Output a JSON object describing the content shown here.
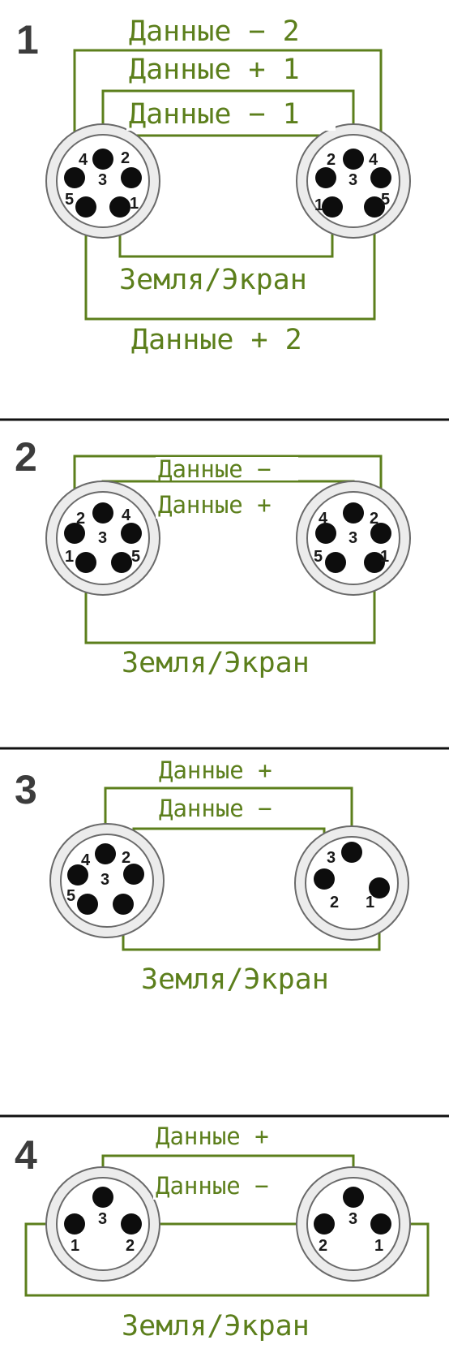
{
  "sections": [
    {
      "number": "1",
      "labels": {
        "data_minus_2": "Данные − 2",
        "data_plus_1": "Данные + 1",
        "data_minus_1": "Данные − 1",
        "ground": "Земля/Экран",
        "data_plus_2": "Данные + 2"
      }
    },
    {
      "number": "2",
      "labels": {
        "data_minus": "Данные −",
        "data_plus": "Данные +",
        "ground": "Земля/Экран"
      }
    },
    {
      "number": "3",
      "labels": {
        "data_plus": "Данные +",
        "data_minus": "Данные −",
        "ground": "Земля/Экран"
      }
    },
    {
      "number": "4",
      "labels": {
        "data_plus": "Данные +",
        "data_minus": "Данные −",
        "ground": "Земля/Экран"
      }
    }
  ],
  "pin_labels": {
    "p1": "1",
    "p2": "2",
    "p3": "3",
    "p4": "4",
    "p5": "5"
  },
  "colors": {
    "wire": "#5c7f1c",
    "pin": "#0d0d0d",
    "text": "#3c3c3c"
  }
}
